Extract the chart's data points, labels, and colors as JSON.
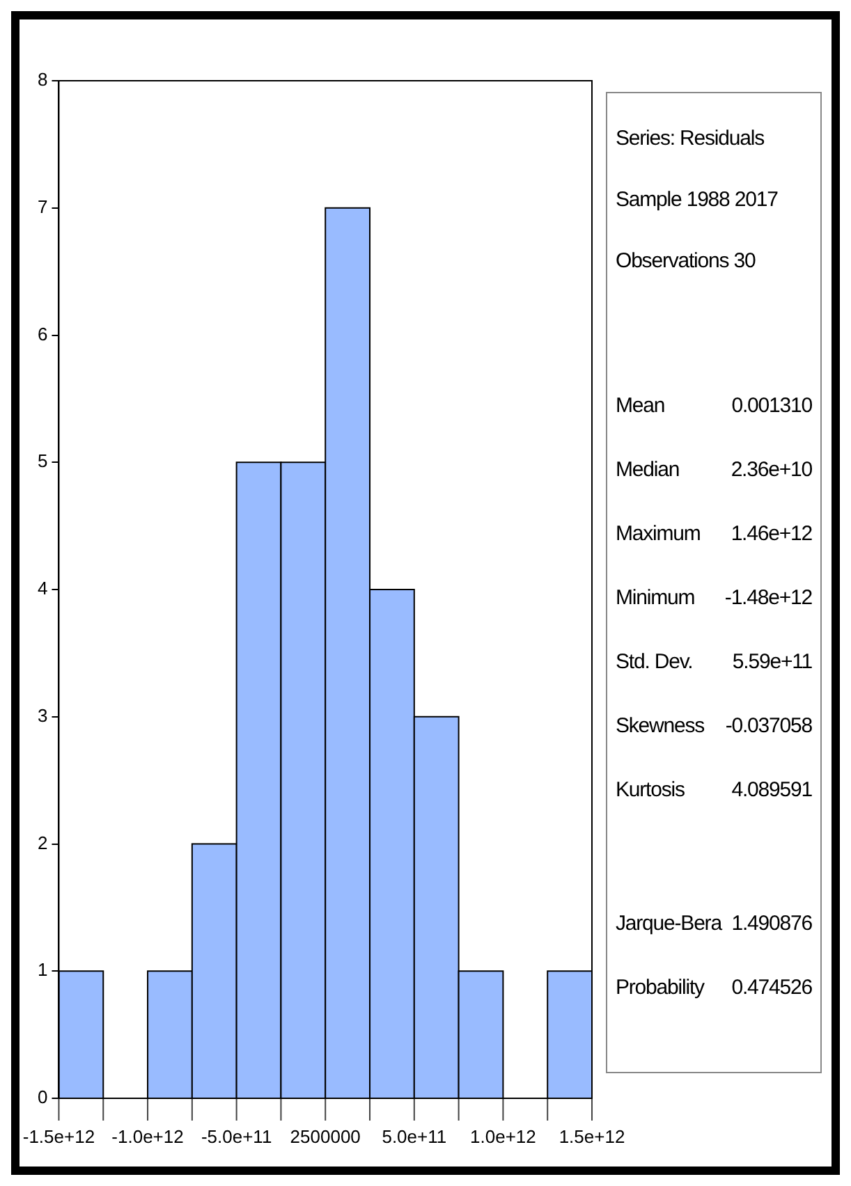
{
  "chart_data": {
    "type": "histogram",
    "bins": [
      -1500000000000.0,
      -1250000000000.0,
      -1000000000000.0,
      -750000000000.0,
      -500000000000.0,
      -250000000000.0,
      0,
      250000000000.0,
      500000000000.0,
      750000000000.0,
      1000000000000.0,
      1250000000000.0,
      1500000000000.0
    ],
    "values": [
      1,
      0,
      1,
      2,
      5,
      5,
      7,
      4,
      3,
      1,
      0,
      1
    ],
    "color": "#99bbff",
    "xlim": [
      -1500000000000.0,
      1500000000000.0
    ],
    "xticks": [
      {
        "value": -1500000000000.0,
        "label": "-1.5e+12"
      },
      {
        "value": -1250000000000.0,
        "label": null
      },
      {
        "value": -1000000000000.0,
        "label": "-1.0e+12"
      },
      {
        "value": -750000000000.0,
        "label": null
      },
      {
        "value": -500000000000.0,
        "label": "-5.0e+11"
      },
      {
        "value": -250000000000.0,
        "label": null
      },
      2500000,
      {
        "value": 250000000000.0,
        "label": null
      },
      {
        "value": 500000000000.0,
        "label": "5.0e+11"
      },
      {
        "value": 750000000000.0,
        "label": null
      },
      {
        "value": 1000000000000.0,
        "label": "1.0e+12"
      },
      {
        "value": 1250000000000.0,
        "label": null
      },
      {
        "value": 1500000000000.0,
        "label": "1.5e+12"
      }
    ],
    "ylim": [
      0,
      8
    ],
    "yticks": [
      0,
      1,
      2,
      3,
      4,
      5,
      6,
      7,
      8
    ],
    "grid": false,
    "legend": false,
    "annotations": [
      "Series: Residuals",
      "Sample 1988 2017",
      "Observations 30",
      "Mean 0.001310",
      "Median 2.36e+10",
      "Maximum 1.46e+12",
      "Minimum -1.48e+12",
      "Std. Dev. 5.59e+11",
      "Skewness -0.037058",
      "Kurtosis 4.089591",
      "Jarque-Bera 1.490876",
      "Probability 0.474526"
    ]
  }
}
